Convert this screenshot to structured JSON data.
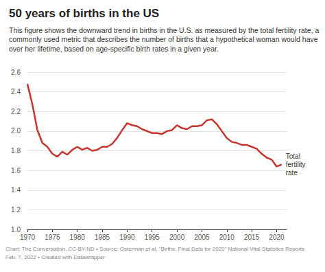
{
  "chart_data": {
    "type": "line",
    "title": "50 years of births in the US",
    "subtitle": "This figure shows the downward trend in births in the U.S. as measured by the total fertility rate, a commonly used metric that describes the number of births that a hypothetical woman would have over her lifetime, based on age-specific birth rates in a given year.",
    "annotations": [
      "Chart: The Conversation, CC-BY-ND • Source: Osterman et al, \"Births: Final Data for 2020\" National Vital Statistics Reports",
      "Feb. 7, 2022 • Created with Datawrapper"
    ],
    "x": [
      1970,
      1971,
      1972,
      1973,
      1974,
      1975,
      1976,
      1977,
      1978,
      1979,
      1980,
      1981,
      1982,
      1983,
      1984,
      1985,
      1986,
      1987,
      1988,
      1989,
      1990,
      1991,
      1992,
      1993,
      1994,
      1995,
      1996,
      1997,
      1998,
      1999,
      2000,
      2001,
      2002,
      2003,
      2004,
      2005,
      2006,
      2007,
      2008,
      2009,
      2010,
      2011,
      2012,
      2013,
      2014,
      2015,
      2016,
      2017,
      2018,
      2019,
      2020,
      2021
    ],
    "series": [
      {
        "name": "Total fertility rate",
        "color": "#c8342c",
        "values": [
          2.48,
          2.27,
          2.01,
          1.88,
          1.84,
          1.77,
          1.74,
          1.79,
          1.76,
          1.81,
          1.84,
          1.81,
          1.83,
          1.8,
          1.81,
          1.84,
          1.84,
          1.87,
          1.93,
          2.01,
          2.08,
          2.06,
          2.05,
          2.02,
          2.0,
          1.98,
          1.98,
          1.97,
          2.0,
          2.01,
          2.06,
          2.03,
          2.02,
          2.05,
          2.05,
          2.06,
          2.11,
          2.12,
          2.07,
          2.0,
          1.93,
          1.89,
          1.88,
          1.86,
          1.86,
          1.84,
          1.82,
          1.77,
          1.73,
          1.71,
          1.64,
          1.66
        ]
      }
    ],
    "xlim": [
      1970,
      2022
    ],
    "xticks": [
      1970,
      1975,
      1980,
      1985,
      1990,
      1995,
      2000,
      2005,
      2010,
      2015,
      2020
    ],
    "ylim": [
      1,
      2.6
    ],
    "yticks": [
      {
        "value": 1,
        "label": "1.0"
      },
      1.2,
      1.4,
      1.6,
      1.8,
      {
        "value": 2,
        "label": "2.0"
      },
      2.2,
      2.4,
      2.6
    ],
    "grid": true
  }
}
